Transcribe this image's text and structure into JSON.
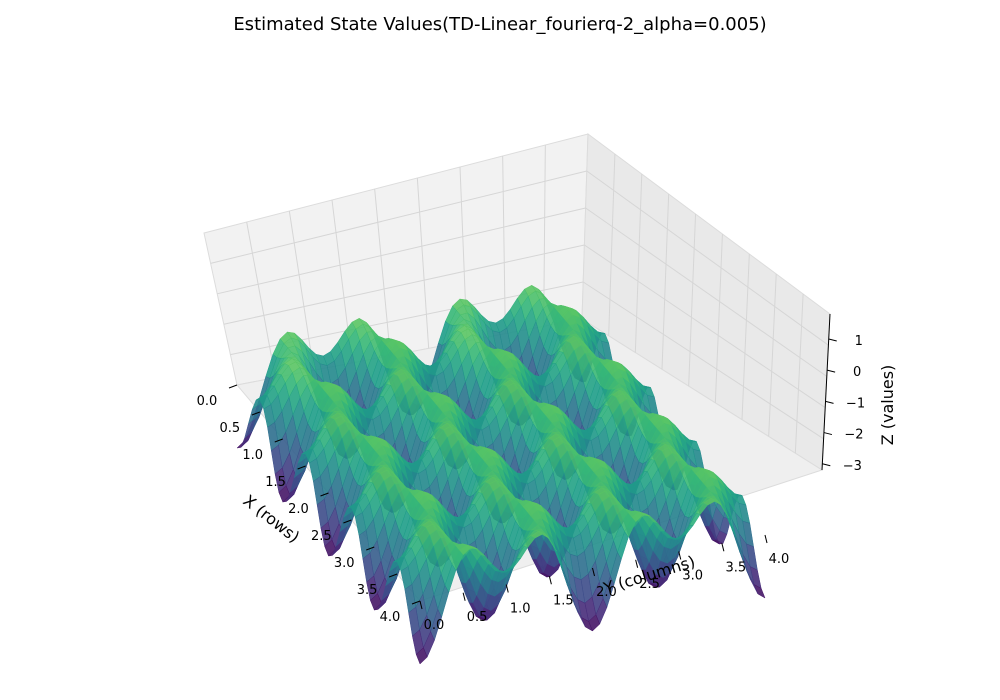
{
  "chart_data": {
    "type": "surface",
    "title": "Estimated State Values(TD-Linear_fourierq-2_alpha=0.005)",
    "xlabel": "X (rows)",
    "ylabel": "Y (columns)",
    "zlabel": "Z (values)",
    "xlim": [
      0,
      4
    ],
    "ylim": [
      0,
      4
    ],
    "zlim": [
      -3.2,
      1.8
    ],
    "x_ticks": [
      "0.0",
      "0.5",
      "1.0",
      "1.5",
      "2.0",
      "2.5",
      "3.0",
      "3.5",
      "4.0"
    ],
    "y_ticks": [
      "0.0",
      "0.5",
      "1.0",
      "1.5",
      "2.0",
      "2.5",
      "3.0",
      "3.5",
      "4.0"
    ],
    "z_ticks": [
      "1",
      "0",
      "−1",
      "−2",
      "−3"
    ],
    "z_tick_values": [
      1,
      0,
      -1,
      -2,
      -3
    ],
    "colormap": "viridis",
    "surface_formula": "z ≈ -0.8 - 1.2·cos(2πx)·cos(πy) - 1.0·cos(2πy)",
    "grid": true
  }
}
